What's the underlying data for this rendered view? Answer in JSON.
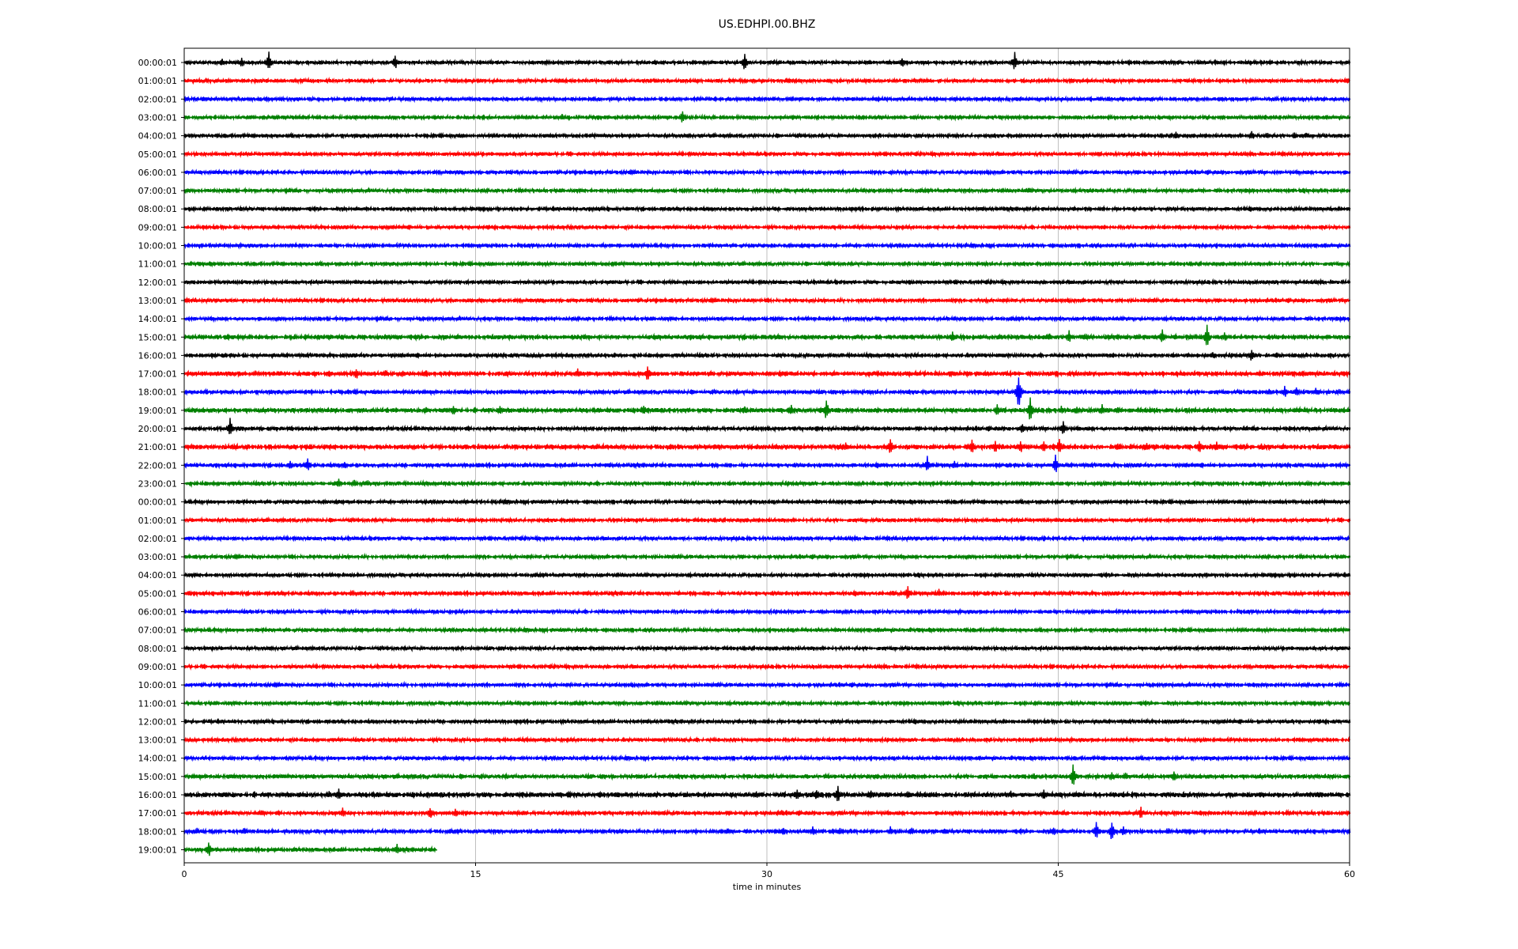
{
  "chart_data": {
    "type": "line",
    "title": "US.EDHPI.00.BHZ",
    "xlabel": "time in minutes",
    "ylabel": "",
    "xlim": [
      0,
      60
    ],
    "x_ticks": [
      0,
      15,
      30,
      45,
      60
    ],
    "grid": "vertical",
    "legend": "none",
    "trace_colors": [
      "#000000",
      "#ff0000",
      "#0000ff",
      "#008000"
    ],
    "rows": [
      {
        "label": "00:00:01",
        "color": "#000000",
        "end": 60,
        "noise": 2.2,
        "events": [
          [
            2,
            6
          ],
          [
            3,
            8
          ],
          [
            4.4,
            14
          ],
          [
            10.9,
            11
          ],
          [
            28.9,
            14
          ],
          [
            37,
            8
          ],
          [
            42.8,
            14
          ]
        ]
      },
      {
        "label": "01:00:01",
        "color": "#ff0000",
        "end": 60,
        "noise": 2.2,
        "events": []
      },
      {
        "label": "02:00:01",
        "color": "#0000ff",
        "end": 60,
        "noise": 2.2,
        "events": []
      },
      {
        "label": "03:00:01",
        "color": "#008000",
        "end": 60,
        "noise": 2.2,
        "events": [
          [
            19.5,
            5
          ],
          [
            25.7,
            11
          ],
          [
            39.5,
            3
          ]
        ]
      },
      {
        "label": "04:00:01",
        "color": "#000000",
        "end": 60,
        "noise": 2.2,
        "events": [
          [
            51.1,
            6
          ],
          [
            55,
            7
          ],
          [
            55.8,
            5
          ],
          [
            57.2,
            5
          ],
          [
            57.8,
            4
          ]
        ]
      },
      {
        "label": "05:00:01",
        "color": "#ff0000",
        "end": 60,
        "noise": 2.2,
        "events": [
          [
            47.1,
            3
          ]
        ]
      },
      {
        "label": "06:00:01",
        "color": "#0000ff",
        "end": 60,
        "noise": 2.2,
        "events": [
          [
            36.5,
            3
          ]
        ]
      },
      {
        "label": "07:00:01",
        "color": "#008000",
        "end": 60,
        "noise": 2.2,
        "events": [
          [
            43.5,
            4
          ]
        ]
      },
      {
        "label": "08:00:01",
        "color": "#000000",
        "end": 60,
        "noise": 2.2,
        "events": []
      },
      {
        "label": "09:00:01",
        "color": "#ff0000",
        "end": 60,
        "noise": 2.2,
        "events": []
      },
      {
        "label": "10:00:01",
        "color": "#0000ff",
        "end": 60,
        "noise": 2.2,
        "events": []
      },
      {
        "label": "11:00:01",
        "color": "#008000",
        "end": 60,
        "noise": 2.2,
        "events": [
          [
            22.1,
            3
          ]
        ]
      },
      {
        "label": "12:00:01",
        "color": "#000000",
        "end": 60,
        "noise": 2.2,
        "events": []
      },
      {
        "label": "13:00:01",
        "color": "#ff0000",
        "end": 60,
        "noise": 2.2,
        "events": []
      },
      {
        "label": "14:00:01",
        "color": "#0000ff",
        "end": 60,
        "noise": 2.2,
        "events": []
      },
      {
        "label": "15:00:01",
        "color": "#008000",
        "end": 60,
        "noise": 2.8,
        "events": [
          [
            39.6,
            7
          ],
          [
            44.6,
            5
          ],
          [
            45.6,
            9
          ],
          [
            46.5,
            4
          ],
          [
            49.2,
            4
          ],
          [
            50.4,
            11
          ],
          [
            52.1,
            5
          ],
          [
            52.7,
            16
          ],
          [
            53.6,
            7
          ]
        ]
      },
      {
        "label": "16:00:01",
        "color": "#000000",
        "end": 60,
        "noise": 2.4,
        "events": [
          [
            53,
            5
          ],
          [
            55,
            10
          ],
          [
            56.3,
            4
          ]
        ]
      },
      {
        "label": "17:00:01",
        "color": "#ff0000",
        "end": 60,
        "noise": 2.8,
        "events": [
          [
            3.7,
            4
          ],
          [
            5,
            4
          ],
          [
            7.5,
            6
          ],
          [
            8.9,
            9
          ],
          [
            10.4,
            5
          ],
          [
            11.3,
            6
          ],
          [
            12.5,
            6
          ],
          [
            20.3,
            7
          ],
          [
            23.9,
            11
          ]
        ]
      },
      {
        "label": "18:00:01",
        "color": "#0000ff",
        "end": 60,
        "noise": 2.4,
        "events": [
          [
            43,
            26
          ],
          [
            55.9,
            6
          ],
          [
            56.7,
            9
          ],
          [
            57.3,
            7
          ],
          [
            58.3,
            6
          ],
          [
            59.5,
            4
          ]
        ]
      },
      {
        "label": "19:00:01",
        "color": "#008000",
        "end": 60,
        "noise": 2.8,
        "events": [
          [
            12.5,
            5
          ],
          [
            13.9,
            8
          ],
          [
            16.3,
            7
          ],
          [
            23.7,
            9
          ],
          [
            28.9,
            5
          ],
          [
            31.3,
            7
          ],
          [
            33.1,
            15
          ],
          [
            41.9,
            9
          ],
          [
            43.6,
            18
          ],
          [
            45.2,
            6
          ],
          [
            46,
            7
          ],
          [
            47.3,
            8
          ],
          [
            48.1,
            6
          ]
        ]
      },
      {
        "label": "20:00:01",
        "color": "#000000",
        "end": 60,
        "noise": 2.4,
        "events": [
          [
            2.4,
            14
          ],
          [
            32.6,
            4
          ],
          [
            43.2,
            8
          ],
          [
            45.3,
            13
          ]
        ]
      },
      {
        "label": "21:00:01",
        "color": "#ff0000",
        "end": 60,
        "noise": 3.0,
        "events": [
          [
            21.3,
            5
          ],
          [
            34.1,
            6
          ],
          [
            36.4,
            13
          ],
          [
            40.6,
            11
          ],
          [
            41.8,
            10
          ],
          [
            43.1,
            10
          ],
          [
            44.3,
            8
          ],
          [
            45.1,
            13
          ],
          [
            48.1,
            6
          ],
          [
            49.6,
            7
          ],
          [
            52.3,
            10
          ],
          [
            53.2,
            8
          ],
          [
            55.5,
            6
          ]
        ]
      },
      {
        "label": "22:00:01",
        "color": "#0000ff",
        "end": 60,
        "noise": 2.4,
        "events": [
          [
            5.5,
            6
          ],
          [
            6.4,
            10
          ],
          [
            8.3,
            6
          ],
          [
            38.3,
            12
          ],
          [
            39.7,
            6
          ],
          [
            44.9,
            14
          ]
        ]
      },
      {
        "label": "23:00:01",
        "color": "#008000",
        "end": 60,
        "noise": 2.4,
        "events": [
          [
            8,
            7
          ],
          [
            8.8,
            5
          ],
          [
            9.5,
            5
          ]
        ]
      },
      {
        "label": "00:00:01",
        "color": "#000000",
        "end": 60,
        "noise": 2.2,
        "events": [
          [
            16.5,
            3
          ]
        ]
      },
      {
        "label": "01:00:01",
        "color": "#ff0000",
        "end": 60,
        "noise": 2.2,
        "events": []
      },
      {
        "label": "02:00:01",
        "color": "#0000ff",
        "end": 60,
        "noise": 2.2,
        "events": [
          [
            44.3,
            3
          ]
        ]
      },
      {
        "label": "03:00:01",
        "color": "#008000",
        "end": 60,
        "noise": 2.2,
        "events": []
      },
      {
        "label": "04:00:01",
        "color": "#000000",
        "end": 60,
        "noise": 2.2,
        "events": [
          [
            52.7,
            3
          ],
          [
            57.2,
            3
          ]
        ]
      },
      {
        "label": "05:00:01",
        "color": "#ff0000",
        "end": 60,
        "noise": 2.4,
        "events": [
          [
            0.3,
            4
          ],
          [
            8.7,
            5
          ],
          [
            36.5,
            4
          ],
          [
            37.3,
            11
          ],
          [
            38.9,
            6
          ]
        ]
      },
      {
        "label": "06:00:01",
        "color": "#0000ff",
        "end": 60,
        "noise": 2.2,
        "events": []
      },
      {
        "label": "07:00:01",
        "color": "#008000",
        "end": 60,
        "noise": 2.2,
        "events": []
      },
      {
        "label": "08:00:01",
        "color": "#000000",
        "end": 60,
        "noise": 2.2,
        "events": []
      },
      {
        "label": "09:00:01",
        "color": "#ff0000",
        "end": 60,
        "noise": 2.2,
        "events": []
      },
      {
        "label": "10:00:01",
        "color": "#0000ff",
        "end": 60,
        "noise": 2.2,
        "events": []
      },
      {
        "label": "11:00:01",
        "color": "#008000",
        "end": 60,
        "noise": 2.2,
        "events": []
      },
      {
        "label": "12:00:01",
        "color": "#000000",
        "end": 60,
        "noise": 2.2,
        "events": []
      },
      {
        "label": "13:00:01",
        "color": "#ff0000",
        "end": 60,
        "noise": 2.2,
        "events": [
          [
            58.2,
            2
          ]
        ]
      },
      {
        "label": "14:00:01",
        "color": "#0000ff",
        "end": 60,
        "noise": 2.2,
        "events": []
      },
      {
        "label": "15:00:01",
        "color": "#008000",
        "end": 60,
        "noise": 2.6,
        "events": [
          [
            43.8,
            6
          ],
          [
            45.8,
            17
          ],
          [
            47.8,
            7
          ],
          [
            48.5,
            5
          ],
          [
            51,
            8
          ]
        ]
      },
      {
        "label": "16:00:01",
        "color": "#000000",
        "end": 60,
        "noise": 3.0,
        "events": [
          [
            7.5,
            6
          ],
          [
            8,
            9
          ],
          [
            29.5,
            6
          ],
          [
            31.6,
            10
          ],
          [
            32.6,
            8
          ],
          [
            33.7,
            12
          ],
          [
            35.4,
            7
          ],
          [
            37.3,
            5
          ],
          [
            42.6,
            6
          ],
          [
            44.3,
            8
          ]
        ]
      },
      {
        "label": "17:00:01",
        "color": "#ff0000",
        "end": 60,
        "noise": 2.4,
        "events": [
          [
            4,
            5
          ],
          [
            8.2,
            8
          ],
          [
            12.7,
            9
          ],
          [
            14,
            7
          ],
          [
            17.5,
            4
          ],
          [
            30.8,
            5
          ],
          [
            49.3,
            9
          ]
        ]
      },
      {
        "label": "18:00:01",
        "color": "#0000ff",
        "end": 60,
        "noise": 2.4,
        "events": [
          [
            0.7,
            5
          ],
          [
            3.1,
            5
          ],
          [
            28,
            6
          ],
          [
            30.9,
            6
          ],
          [
            32.4,
            7
          ],
          [
            33.8,
            6
          ],
          [
            36.4,
            7
          ],
          [
            37.5,
            5
          ],
          [
            39.2,
            5
          ],
          [
            44.8,
            7
          ],
          [
            47,
            13
          ],
          [
            47.8,
            15
          ],
          [
            48.4,
            8
          ],
          [
            50.7,
            5
          ]
        ]
      },
      {
        "label": "19:00:01",
        "color": "#008000",
        "end": 13,
        "noise": 2.4,
        "events": [
          [
            1.3,
            12
          ],
          [
            11,
            8
          ]
        ]
      }
    ]
  }
}
